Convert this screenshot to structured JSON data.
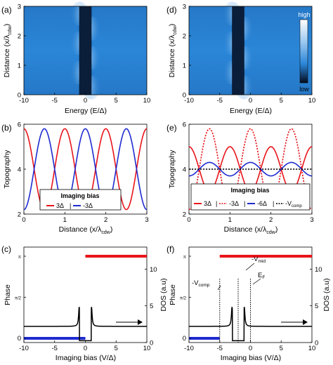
{
  "panels": {
    "a": {
      "letter": "(a)",
      "xlabel": "Energy (E/Δ)",
      "ylabel": "Distance (x/λ",
      "ylabel_sub": "cdw",
      "ylabel_close": ")",
      "xticks": [
        "-10",
        "-5",
        "0",
        "5",
        "10"
      ],
      "yticks": [
        "0",
        "1",
        "2",
        "3"
      ]
    },
    "b": {
      "letter": "(b)",
      "xlabel": "Distance (x/λ",
      "xlabel_sub": "cdw",
      "xlabel_close": ")",
      "ylabel": "Topography",
      "xticks": [
        "0",
        "1",
        "2",
        "3"
      ],
      "yticks": [
        "2",
        "4",
        "6"
      ],
      "legend_title": "Imaging bias",
      "legend": [
        "3Δ",
        "-3Δ"
      ]
    },
    "c": {
      "letter": "(c)",
      "xlabel": "Imaging bias (V/Δ)",
      "ylabel": "Phase",
      "ylabel_right": "DOS (a.u)",
      "xticks": [
        "-10",
        "-5",
        "0",
        "5",
        "10"
      ],
      "yticks_left": [
        "0",
        "π/2",
        "π"
      ],
      "yticks_right": [
        "0",
        "5",
        "10"
      ]
    },
    "d": {
      "letter": "(d)",
      "xlabel": "Energy (E/Δ)",
      "ylabel": "Distance (x/λ",
      "ylabel_sub": "cdw",
      "ylabel_close": ")",
      "xticks": [
        "-10",
        "-5",
        "0",
        "5",
        "10"
      ],
      "yticks": [
        "0",
        "1",
        "2",
        "3"
      ],
      "colorbar_high": "high",
      "colorbar_low": "low"
    },
    "e": {
      "letter": "(e)",
      "xlabel": "Distance (x/λ",
      "xlabel_sub": "cdw",
      "xlabel_close": ")",
      "ylabel": "Topography",
      "xticks": [
        "0",
        "1",
        "2",
        "3"
      ],
      "yticks": [
        "2",
        "4",
        "6"
      ],
      "legend_title": "Imaging bias",
      "legend": [
        "3Δ",
        "-3Δ",
        "-6Δ",
        "-V"
      ],
      "legend_sub": "comp"
    },
    "f": {
      "letter": "(f)",
      "xlabel": "Imaging bias (V/Δ)",
      "ylabel": "Phase",
      "ylabel_right": "DOS (a.u)",
      "xticks": [
        "-10",
        "-5",
        "0",
        "5",
        "10"
      ],
      "yticks_left": [
        "0",
        "π/2",
        "π"
      ],
      "yticks_right": [
        "0",
        "5",
        "10"
      ],
      "annotations": {
        "vcomp": "-V",
        "vcomp_sub": "comp",
        "vmid": "-V",
        "vmid_sub": "mid",
        "ef": "E",
        "ef_sub": "F"
      }
    }
  },
  "colors": {
    "red": "#e8141b",
    "blue": "#1f2bd0",
    "map_base": "#2b86d8",
    "map_dark": "#0a1e3a",
    "black": "#000000"
  },
  "chart_data": [
    {
      "panel": "a",
      "type": "heatmap",
      "x_range": [
        -10,
        10
      ],
      "y_range": [
        0,
        3
      ],
      "gap": [
        -1,
        1
      ]
    },
    {
      "panel": "b",
      "type": "line",
      "xlim": [
        0,
        3
      ],
      "ylim": [
        2,
        6
      ],
      "series": [
        {
          "name": "3Δ",
          "color": "red",
          "mean": 4,
          "amp": 1.8,
          "period": 1,
          "phase": 0.0
        },
        {
          "name": "-3Δ",
          "color": "blue",
          "mean": 4,
          "amp": 1.8,
          "period": 1,
          "phase": 0.5
        }
      ]
    },
    {
      "panel": "c",
      "type": "line",
      "xlim": [
        -10,
        10
      ],
      "phase_segments": [
        {
          "x": [
            -10,
            0
          ],
          "level": 0,
          "color": "blue"
        },
        {
          "x": [
            0,
            10
          ],
          "level": 1,
          "color": "red"
        }
      ],
      "dos_peaks": [
        -1,
        1
      ],
      "dos_base": 2.2,
      "ylim_right": [
        0,
        13
      ]
    },
    {
      "panel": "d",
      "type": "heatmap",
      "x_range": [
        -10,
        10
      ],
      "y_range": [
        0,
        3
      ],
      "gap": [
        -3,
        -1
      ]
    },
    {
      "panel": "e",
      "type": "line",
      "xlim": [
        0,
        3
      ],
      "ylim": [
        2,
        6
      ],
      "series": [
        {
          "name": "3Δ",
          "color": "red",
          "mean": 4,
          "amp": 1.0,
          "period": 1,
          "phase": 0.0,
          "dash": "solid"
        },
        {
          "name": "-3Δ",
          "color": "red",
          "mean": 4,
          "amp": 1.8,
          "period": 1,
          "phase": 0.5,
          "dash": "dotted"
        },
        {
          "name": "-6Δ",
          "color": "blue",
          "mean": 4,
          "amp": 0.3,
          "period": 1,
          "phase": 0.5,
          "dash": "solid"
        },
        {
          "name": "-V comp",
          "color": "black",
          "mean": 4,
          "amp": 0,
          "period": 1,
          "phase": 0,
          "dash": "dotted"
        }
      ]
    },
    {
      "panel": "f",
      "type": "line",
      "xlim": [
        -10,
        10
      ],
      "phase_segments": [
        {
          "x": [
            -10,
            -5
          ],
          "level": 0,
          "color": "blue"
        },
        {
          "x": [
            -5,
            10
          ],
          "level": 1,
          "color": "red"
        }
      ],
      "dos_peaks": [
        -3,
        -1
      ],
      "dos_base": 2.2,
      "ylim_right": [
        0,
        13
      ],
      "markers": [
        -5,
        -2,
        0
      ]
    }
  ]
}
